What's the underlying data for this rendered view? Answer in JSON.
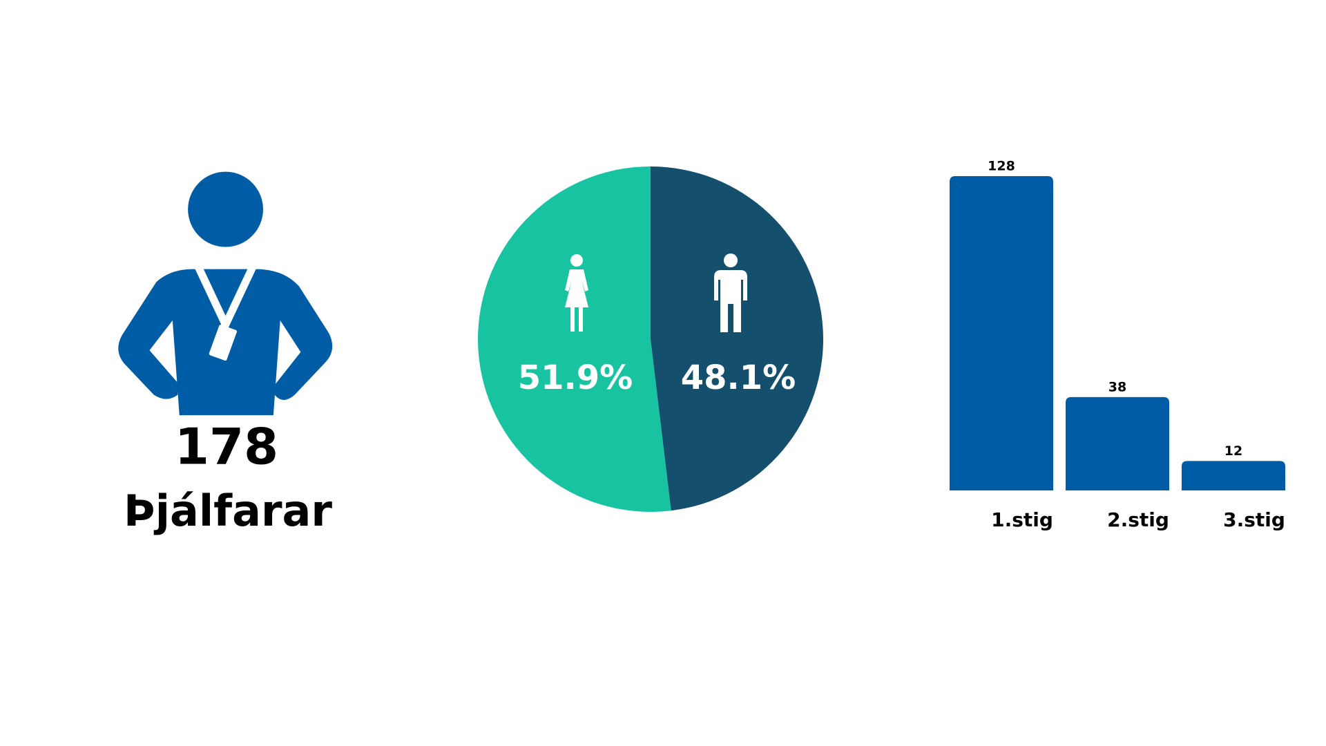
{
  "headline": {
    "value": "178",
    "label": "Þjálfarar"
  },
  "chart_data": [
    {
      "type": "pie",
      "values": [
        51.9,
        48.1
      ],
      "value_labels": [
        "51.9%",
        "48.1%"
      ],
      "colors": [
        "#17c3a0",
        "#154f6e"
      ]
    },
    {
      "type": "bar",
      "categories": [
        "1.stig",
        "2.stig",
        "3.stig"
      ],
      "values": [
        128,
        38,
        12
      ],
      "color": "#005da5"
    }
  ]
}
